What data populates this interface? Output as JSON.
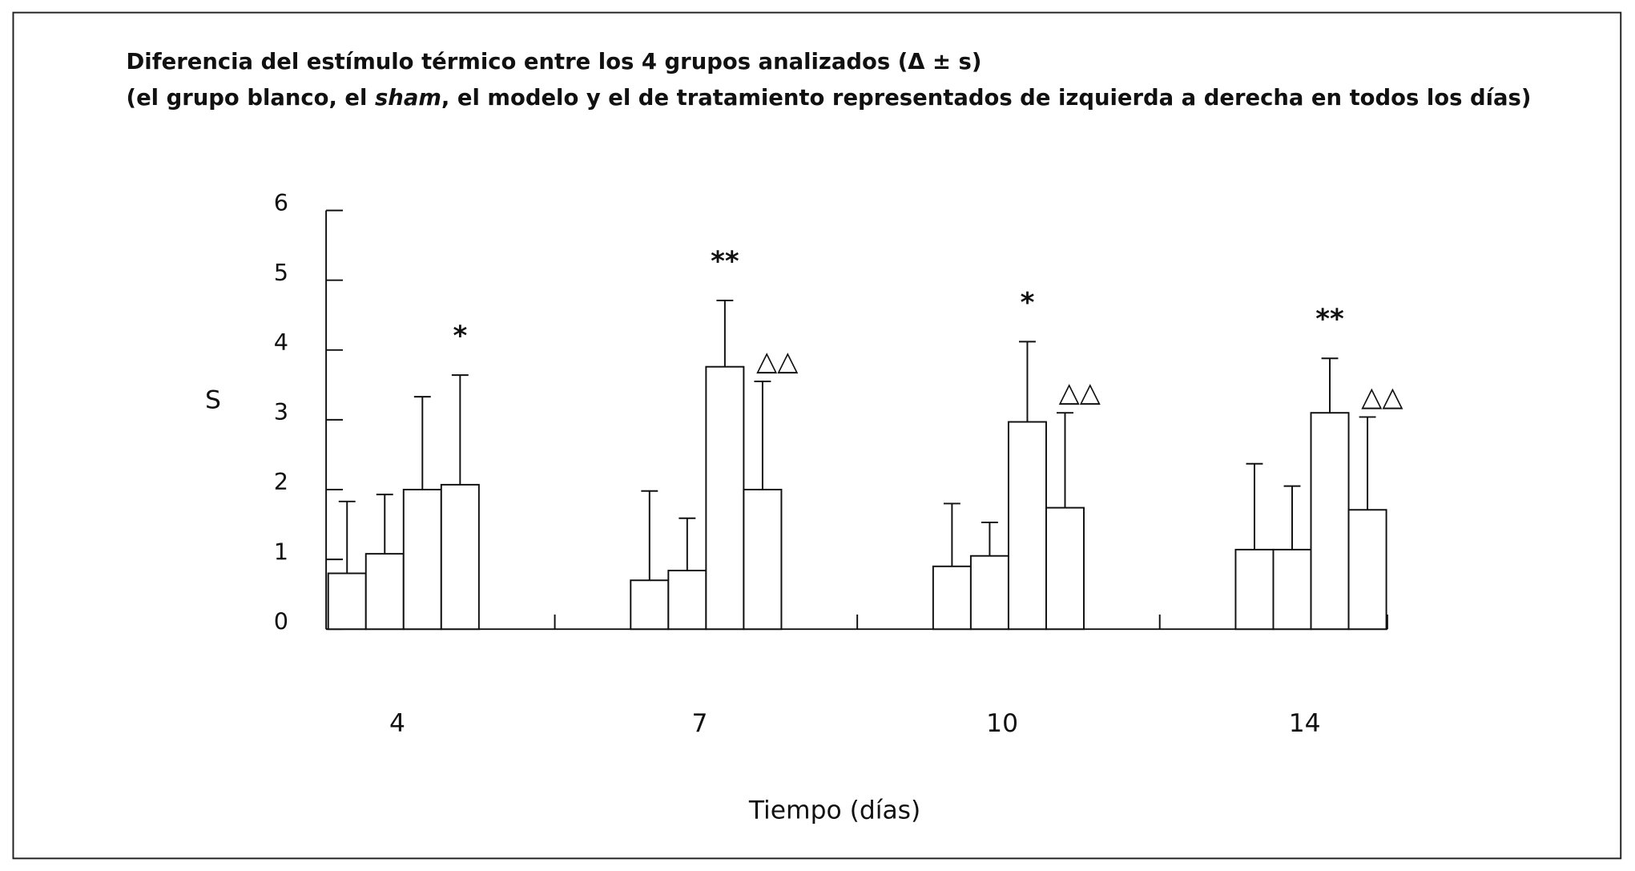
{
  "chart_data": {
    "type": "bar",
    "title": [
      "Diferencia del estímulo térmico entre los 4 grupos analizados (Δ ± s)",
      [
        "(el grupo blanco, el ",
        "sham",
        ", el modelo y el de tratamiento representados de izquierda a derecha en todos los días)"
      ]
    ],
    "y_label": "S",
    "x_label": "Tiempo (días)",
    "categories": [
      "4",
      "7",
      "10",
      "14"
    ],
    "series": [
      {
        "color": "#ffffff",
        "values": [
          0.8,
          0.7,
          0.9,
          1.14
        ],
        "errors": [
          1.03,
          1.28,
          0.9,
          1.23
        ],
        "annotations": [
          null,
          null,
          null,
          null
        ]
      },
      {
        "color": "#ffffff",
        "values": [
          1.08,
          0.84,
          1.05,
          1.14
        ],
        "errors": [
          0.85,
          0.75,
          0.48,
          0.91
        ],
        "annotations": [
          null,
          null,
          null,
          null
        ]
      },
      {
        "color": "#ffffff",
        "values": [
          2.0,
          3.76,
          2.97,
          3.1
        ],
        "errors": [
          1.33,
          0.95,
          1.15,
          0.78
        ],
        "annotations": [
          null,
          "**",
          "*",
          "**"
        ]
      },
      {
        "color": "#ffffff",
        "values": [
          2.07,
          2.0,
          1.74,
          1.71
        ],
        "errors": [
          1.57,
          1.55,
          1.36,
          1.33
        ],
        "annotations": [
          "*",
          "△△",
          "△△",
          "△△"
        ]
      }
    ],
    "ylim": [
      0,
      6
    ],
    "yticks": [
      0,
      1,
      2,
      3,
      4,
      5,
      6
    ]
  }
}
